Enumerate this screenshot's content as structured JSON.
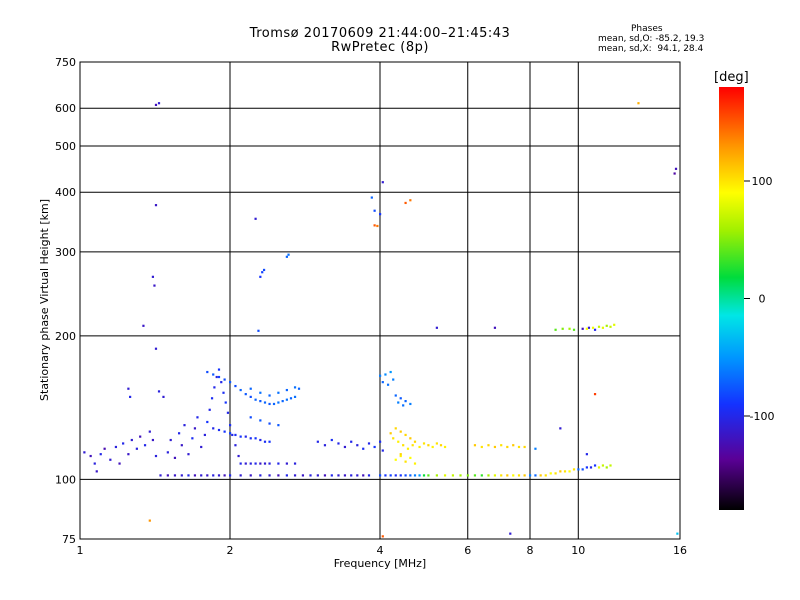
{
  "header": {
    "title_line1": "Tromsø 20170609 21:44:00–21:45:43",
    "title_line2": "RwPretec (8p)",
    "phases_heading": "Phases",
    "stats_o": "mean, sd,O: -85.2, 19.3",
    "stats_x": "mean, sd,X:  94.1, 28.4"
  },
  "colorbar": {
    "label": "[deg]",
    "ticks": [
      {
        "value": 100,
        "label": "100"
      },
      {
        "value": 0,
        "label": "0"
      },
      {
        "value": -100,
        "label": "-100"
      }
    ],
    "range": [
      -180,
      180
    ]
  },
  "chart_data": {
    "type": "scatter",
    "xlabel": "Frequency [MHz]",
    "ylabel": "Stationary phase Virtual Height [km]",
    "xscale": "log",
    "yscale": "log",
    "xlim": [
      1,
      16
    ],
    "ylim": [
      75,
      750
    ],
    "x_ticks": [
      {
        "v": 1,
        "label": "1"
      },
      {
        "v": 2,
        "label": "2"
      },
      {
        "v": 4,
        "label": "4"
      },
      {
        "v": 6,
        "label": "6"
      },
      {
        "v": 8,
        "label": "8"
      },
      {
        "v": 10,
        "label": "10"
      },
      {
        "v": 16,
        "label": "16"
      }
    ],
    "y_ticks": [
      {
        "v": 75,
        "label": "75"
      },
      {
        "v": 100,
        "label": "100"
      },
      {
        "v": 200,
        "label": "200"
      },
      {
        "v": 300,
        "label": "300"
      },
      {
        "v": 400,
        "label": "400"
      },
      {
        "v": 500,
        "label": "500"
      },
      {
        "v": 600,
        "label": "600"
      },
      {
        "v": 750,
        "label": "750"
      }
    ],
    "grid": true,
    "color_variable": "phase [deg]",
    "points": [
      [
        1.02,
        114,
        -110
      ],
      [
        1.05,
        112,
        -120
      ],
      [
        1.07,
        108,
        -105
      ],
      [
        1.08,
        104,
        -115
      ],
      [
        1.1,
        113,
        -100
      ],
      [
        1.12,
        116,
        -125
      ],
      [
        1.15,
        110,
        -110
      ],
      [
        1.18,
        117,
        -105
      ],
      [
        1.2,
        108,
        -120
      ],
      [
        1.22,
        119,
        -100
      ],
      [
        1.25,
        113,
        -115
      ],
      [
        1.27,
        121,
        -110
      ],
      [
        1.3,
        116,
        -105
      ],
      [
        1.32,
        123,
        -120
      ],
      [
        1.35,
        118,
        -100
      ],
      [
        1.38,
        126,
        -110
      ],
      [
        1.4,
        121,
        -115
      ],
      [
        1.42,
        112,
        -105
      ],
      [
        1.45,
        102,
        -110
      ],
      [
        1.5,
        102,
        -120
      ],
      [
        1.55,
        102,
        -115
      ],
      [
        1.6,
        102,
        -110
      ],
      [
        1.65,
        102,
        -100
      ],
      [
        1.7,
        102,
        -120
      ],
      [
        1.75,
        102,
        -110
      ],
      [
        1.8,
        102,
        -115
      ],
      [
        1.85,
        102,
        -105
      ],
      [
        1.9,
        102,
        -110
      ],
      [
        1.95,
        102,
        -120
      ],
      [
        2.0,
        102,
        -100
      ],
      [
        2.1,
        102,
        -110
      ],
      [
        2.2,
        102,
        -115
      ],
      [
        2.3,
        102,
        -105
      ],
      [
        2.4,
        102,
        -110
      ],
      [
        2.5,
        102,
        -120
      ],
      [
        2.6,
        102,
        -100
      ],
      [
        2.7,
        102,
        -110
      ],
      [
        2.8,
        102,
        -115
      ],
      [
        2.9,
        102,
        -105
      ],
      [
        3.0,
        102,
        -110
      ],
      [
        3.1,
        102,
        -120
      ],
      [
        3.2,
        102,
        -100
      ],
      [
        3.3,
        102,
        -110
      ],
      [
        3.4,
        102,
        -115
      ],
      [
        3.5,
        102,
        -105
      ],
      [
        3.6,
        102,
        -110
      ],
      [
        3.7,
        102,
        -120
      ],
      [
        3.8,
        102,
        -100
      ],
      [
        1.5,
        114,
        -105
      ],
      [
        1.52,
        121,
        -110
      ],
      [
        1.55,
        111,
        -120
      ],
      [
        1.58,
        125,
        -100
      ],
      [
        1.6,
        118,
        -115
      ],
      [
        1.62,
        130,
        -105
      ],
      [
        1.65,
        113,
        -110
      ],
      [
        1.68,
        122,
        -95
      ],
      [
        1.7,
        128,
        -115
      ],
      [
        1.72,
        135,
        -100
      ],
      [
        1.75,
        117,
        -110
      ],
      [
        1.78,
        124,
        -105
      ],
      [
        1.8,
        132,
        -90
      ],
      [
        1.82,
        140,
        -100
      ],
      [
        1.84,
        148,
        -95
      ],
      [
        1.86,
        156,
        -100
      ],
      [
        1.88,
        164,
        -105
      ],
      [
        1.9,
        170,
        -90
      ],
      [
        1.92,
        160,
        -100
      ],
      [
        1.94,
        152,
        -95
      ],
      [
        1.96,
        145,
        -90
      ],
      [
        1.98,
        138,
        -100
      ],
      [
        2.0,
        130,
        -95
      ],
      [
        2.02,
        124,
        -100
      ],
      [
        2.05,
        118,
        -105
      ],
      [
        2.08,
        112,
        -110
      ],
      [
        2.1,
        108,
        -100
      ],
      [
        2.15,
        108,
        -110
      ],
      [
        2.2,
        108,
        -105
      ],
      [
        2.25,
        108,
        -100
      ],
      [
        2.3,
        108,
        -115
      ],
      [
        2.35,
        108,
        -110
      ],
      [
        2.4,
        108,
        -105
      ],
      [
        2.5,
        108,
        -100
      ],
      [
        2.6,
        108,
        -110
      ],
      [
        2.7,
        108,
        -105
      ],
      [
        1.85,
        128,
        -100
      ],
      [
        1.9,
        127,
        -95
      ],
      [
        1.95,
        126,
        -90
      ],
      [
        2.0,
        125,
        -85
      ],
      [
        2.05,
        124,
        -95
      ],
      [
        2.1,
        123,
        -90
      ],
      [
        2.15,
        123,
        -100
      ],
      [
        2.2,
        122,
        -95
      ],
      [
        2.25,
        122,
        -90
      ],
      [
        2.3,
        121,
        -100
      ],
      [
        2.35,
        120,
        -95
      ],
      [
        2.4,
        120,
        -90
      ],
      [
        1.8,
        168,
        -80
      ],
      [
        1.85,
        166,
        -75
      ],
      [
        1.9,
        164,
        -85
      ],
      [
        1.95,
        162,
        -80
      ],
      [
        2.0,
        160,
        -75
      ],
      [
        2.05,
        157,
        -80
      ],
      [
        2.1,
        154,
        -70
      ],
      [
        2.15,
        151,
        -75
      ],
      [
        2.2,
        149,
        -80
      ],
      [
        2.25,
        147,
        -70
      ],
      [
        2.3,
        146,
        -75
      ],
      [
        2.35,
        145,
        -70
      ],
      [
        2.4,
        144,
        -75
      ],
      [
        2.45,
        144,
        -70
      ],
      [
        2.5,
        145,
        -65
      ],
      [
        2.55,
        146,
        -70
      ],
      [
        2.6,
        147,
        -65
      ],
      [
        2.65,
        148,
        -70
      ],
      [
        2.7,
        149,
        -65
      ],
      [
        2.2,
        155,
        -70
      ],
      [
        2.3,
        152,
        -65
      ],
      [
        2.4,
        150,
        -70
      ],
      [
        2.5,
        152,
        -65
      ],
      [
        2.6,
        154,
        -70
      ],
      [
        2.7,
        156,
        -65
      ],
      [
        2.75,
        155,
        -70
      ],
      [
        2.2,
        135,
        -80
      ],
      [
        2.3,
        133,
        -75
      ],
      [
        2.4,
        131,
        -80
      ],
      [
        2.5,
        130,
        -75
      ],
      [
        3.0,
        120,
        -100
      ],
      [
        3.1,
        118,
        -105
      ],
      [
        3.2,
        121,
        -95
      ],
      [
        3.3,
        119,
        -100
      ],
      [
        3.4,
        117,
        -110
      ],
      [
        3.5,
        120,
        -100
      ],
      [
        3.6,
        118,
        -105
      ],
      [
        3.7,
        116,
        -95
      ],
      [
        3.8,
        119,
        -100
      ],
      [
        3.9,
        117,
        -90
      ],
      [
        4.0,
        120,
        -95
      ],
      [
        4.05,
        115,
        -100
      ],
      [
        4.0,
        165,
        -60
      ],
      [
        4.05,
        160,
        -70
      ],
      [
        4.1,
        166,
        -55
      ],
      [
        4.15,
        158,
        -65
      ],
      [
        4.2,
        168,
        -50
      ],
      [
        4.25,
        162,
        -60
      ],
      [
        4.3,
        150,
        -70
      ],
      [
        4.35,
        145,
        -60
      ],
      [
        4.4,
        148,
        -75
      ],
      [
        4.45,
        143,
        -65
      ],
      [
        4.5,
        146,
        -70
      ],
      [
        4.6,
        144,
        -60
      ],
      [
        4.2,
        125,
        110
      ],
      [
        4.25,
        122,
        100
      ],
      [
        4.3,
        128,
        105
      ],
      [
        4.35,
        120,
        95
      ],
      [
        4.4,
        126,
        110
      ],
      [
        4.45,
        118,
        100
      ],
      [
        4.5,
        124,
        105
      ],
      [
        4.55,
        116,
        95
      ],
      [
        4.6,
        122,
        110
      ],
      [
        4.65,
        118,
        100
      ],
      [
        4.7,
        120,
        105
      ],
      [
        4.8,
        117,
        95
      ],
      [
        4.9,
        119,
        100
      ],
      [
        5.0,
        118,
        105
      ],
      [
        5.1,
        117,
        95
      ],
      [
        5.2,
        119,
        100
      ],
      [
        5.3,
        118,
        105
      ],
      [
        5.4,
        117,
        95
      ],
      [
        4.3,
        110,
        90
      ],
      [
        4.4,
        112,
        95
      ],
      [
        4.5,
        109,
        100
      ],
      [
        4.6,
        111,
        90
      ],
      [
        4.7,
        108,
        95
      ],
      [
        4.4,
        113,
        105
      ],
      [
        4.0,
        102,
        -80
      ],
      [
        4.1,
        102,
        -90
      ],
      [
        4.2,
        102,
        -85
      ],
      [
        4.3,
        102,
        -95
      ],
      [
        4.4,
        102,
        -90
      ],
      [
        4.5,
        102,
        -80
      ],
      [
        4.6,
        102,
        -70
      ],
      [
        4.7,
        102,
        -60
      ],
      [
        4.8,
        102,
        -50
      ],
      [
        4.9,
        102,
        20
      ],
      [
        5.0,
        102,
        40
      ],
      [
        5.2,
        102,
        60
      ],
      [
        5.4,
        102,
        80
      ],
      [
        5.6,
        102,
        70
      ],
      [
        5.8,
        102,
        60
      ],
      [
        6.0,
        102,
        50
      ],
      [
        6.2,
        102,
        40
      ],
      [
        6.4,
        102,
        30
      ],
      [
        6.6,
        102,
        60
      ],
      [
        6.8,
        102,
        80
      ],
      [
        7.0,
        102,
        100
      ],
      [
        7.2,
        102,
        110
      ],
      [
        7.4,
        102,
        90
      ],
      [
        7.6,
        102,
        100
      ],
      [
        7.8,
        102,
        110
      ],
      [
        8.0,
        102,
        -60
      ],
      [
        8.2,
        102,
        -70
      ],
      [
        8.4,
        102,
        110
      ],
      [
        8.6,
        102,
        100
      ],
      [
        8.8,
        103,
        90
      ],
      [
        9.0,
        103,
        100
      ],
      [
        9.2,
        104,
        110
      ],
      [
        9.4,
        104,
        100
      ],
      [
        9.6,
        104,
        90
      ],
      [
        9.8,
        105,
        100
      ],
      [
        10.0,
        105,
        -70
      ],
      [
        10.2,
        105,
        -80
      ],
      [
        10.4,
        106,
        -90
      ],
      [
        10.6,
        106,
        -100
      ],
      [
        10.8,
        107,
        -90
      ],
      [
        11.0,
        106,
        80
      ],
      [
        11.2,
        107,
        70
      ],
      [
        11.4,
        106,
        60
      ],
      [
        11.6,
        107,
        70
      ],
      [
        6.2,
        118,
        110
      ],
      [
        6.4,
        117,
        100
      ],
      [
        6.6,
        118,
        105
      ],
      [
        6.8,
        117,
        110
      ],
      [
        7.0,
        118,
        100
      ],
      [
        7.2,
        117,
        105
      ],
      [
        7.4,
        118,
        110
      ],
      [
        7.6,
        117,
        100
      ],
      [
        7.8,
        117,
        105
      ],
      [
        8.2,
        116,
        -60
      ],
      [
        9.0,
        206,
        40
      ],
      [
        9.3,
        207,
        50
      ],
      [
        9.6,
        207,
        60
      ],
      [
        9.8,
        206,
        40
      ],
      [
        10.2,
        207,
        -120
      ],
      [
        10.5,
        208,
        -110
      ],
      [
        10.8,
        206,
        -100
      ],
      [
        11.0,
        209,
        70
      ],
      [
        11.2,
        208,
        80
      ],
      [
        11.4,
        210,
        60
      ],
      [
        11.6,
        209,
        70
      ],
      [
        11.8,
        211,
        80
      ],
      [
        10.4,
        207,
        90
      ],
      [
        10.7,
        208,
        85
      ],
      [
        1.25,
        155,
        -110
      ],
      [
        1.26,
        149,
        -100
      ],
      [
        1.34,
        210,
        -115
      ],
      [
        1.4,
        266,
        -110
      ],
      [
        1.41,
        255,
        -115
      ],
      [
        1.42,
        610,
        -120
      ],
      [
        1.44,
        615,
        -110
      ],
      [
        1.42,
        376,
        -115
      ],
      [
        1.42,
        188,
        -110
      ],
      [
        1.44,
        153,
        -105
      ],
      [
        1.47,
        149,
        -110
      ],
      [
        2.25,
        352,
        -110
      ],
      [
        2.3,
        266,
        -90
      ],
      [
        2.32,
        272,
        -85
      ],
      [
        2.34,
        275,
        -80
      ],
      [
        2.6,
        293,
        -70
      ],
      [
        2.62,
        296,
        -65
      ],
      [
        2.28,
        205,
        -80
      ],
      [
        3.9,
        341,
        150
      ],
      [
        3.95,
        340,
        140
      ],
      [
        3.85,
        390,
        -70
      ],
      [
        3.9,
        366,
        -80
      ],
      [
        4.05,
        420,
        -110
      ],
      [
        4.6,
        385,
        140
      ],
      [
        4.5,
        380,
        150
      ],
      [
        4.0,
        360,
        -90
      ],
      [
        5.2,
        208,
        -110
      ],
      [
        6.8,
        208,
        -120
      ],
      [
        10.8,
        151,
        160
      ],
      [
        13.2,
        615,
        120
      ],
      [
        15.6,
        438,
        -130
      ],
      [
        15.7,
        448,
        -120
      ],
      [
        1.38,
        82,
        130
      ],
      [
        4.05,
        76,
        150
      ],
      [
        7.3,
        77,
        -110
      ],
      [
        15.8,
        77,
        -30
      ],
      [
        9.2,
        128,
        -110
      ],
      [
        10.4,
        113,
        -100
      ]
    ]
  }
}
